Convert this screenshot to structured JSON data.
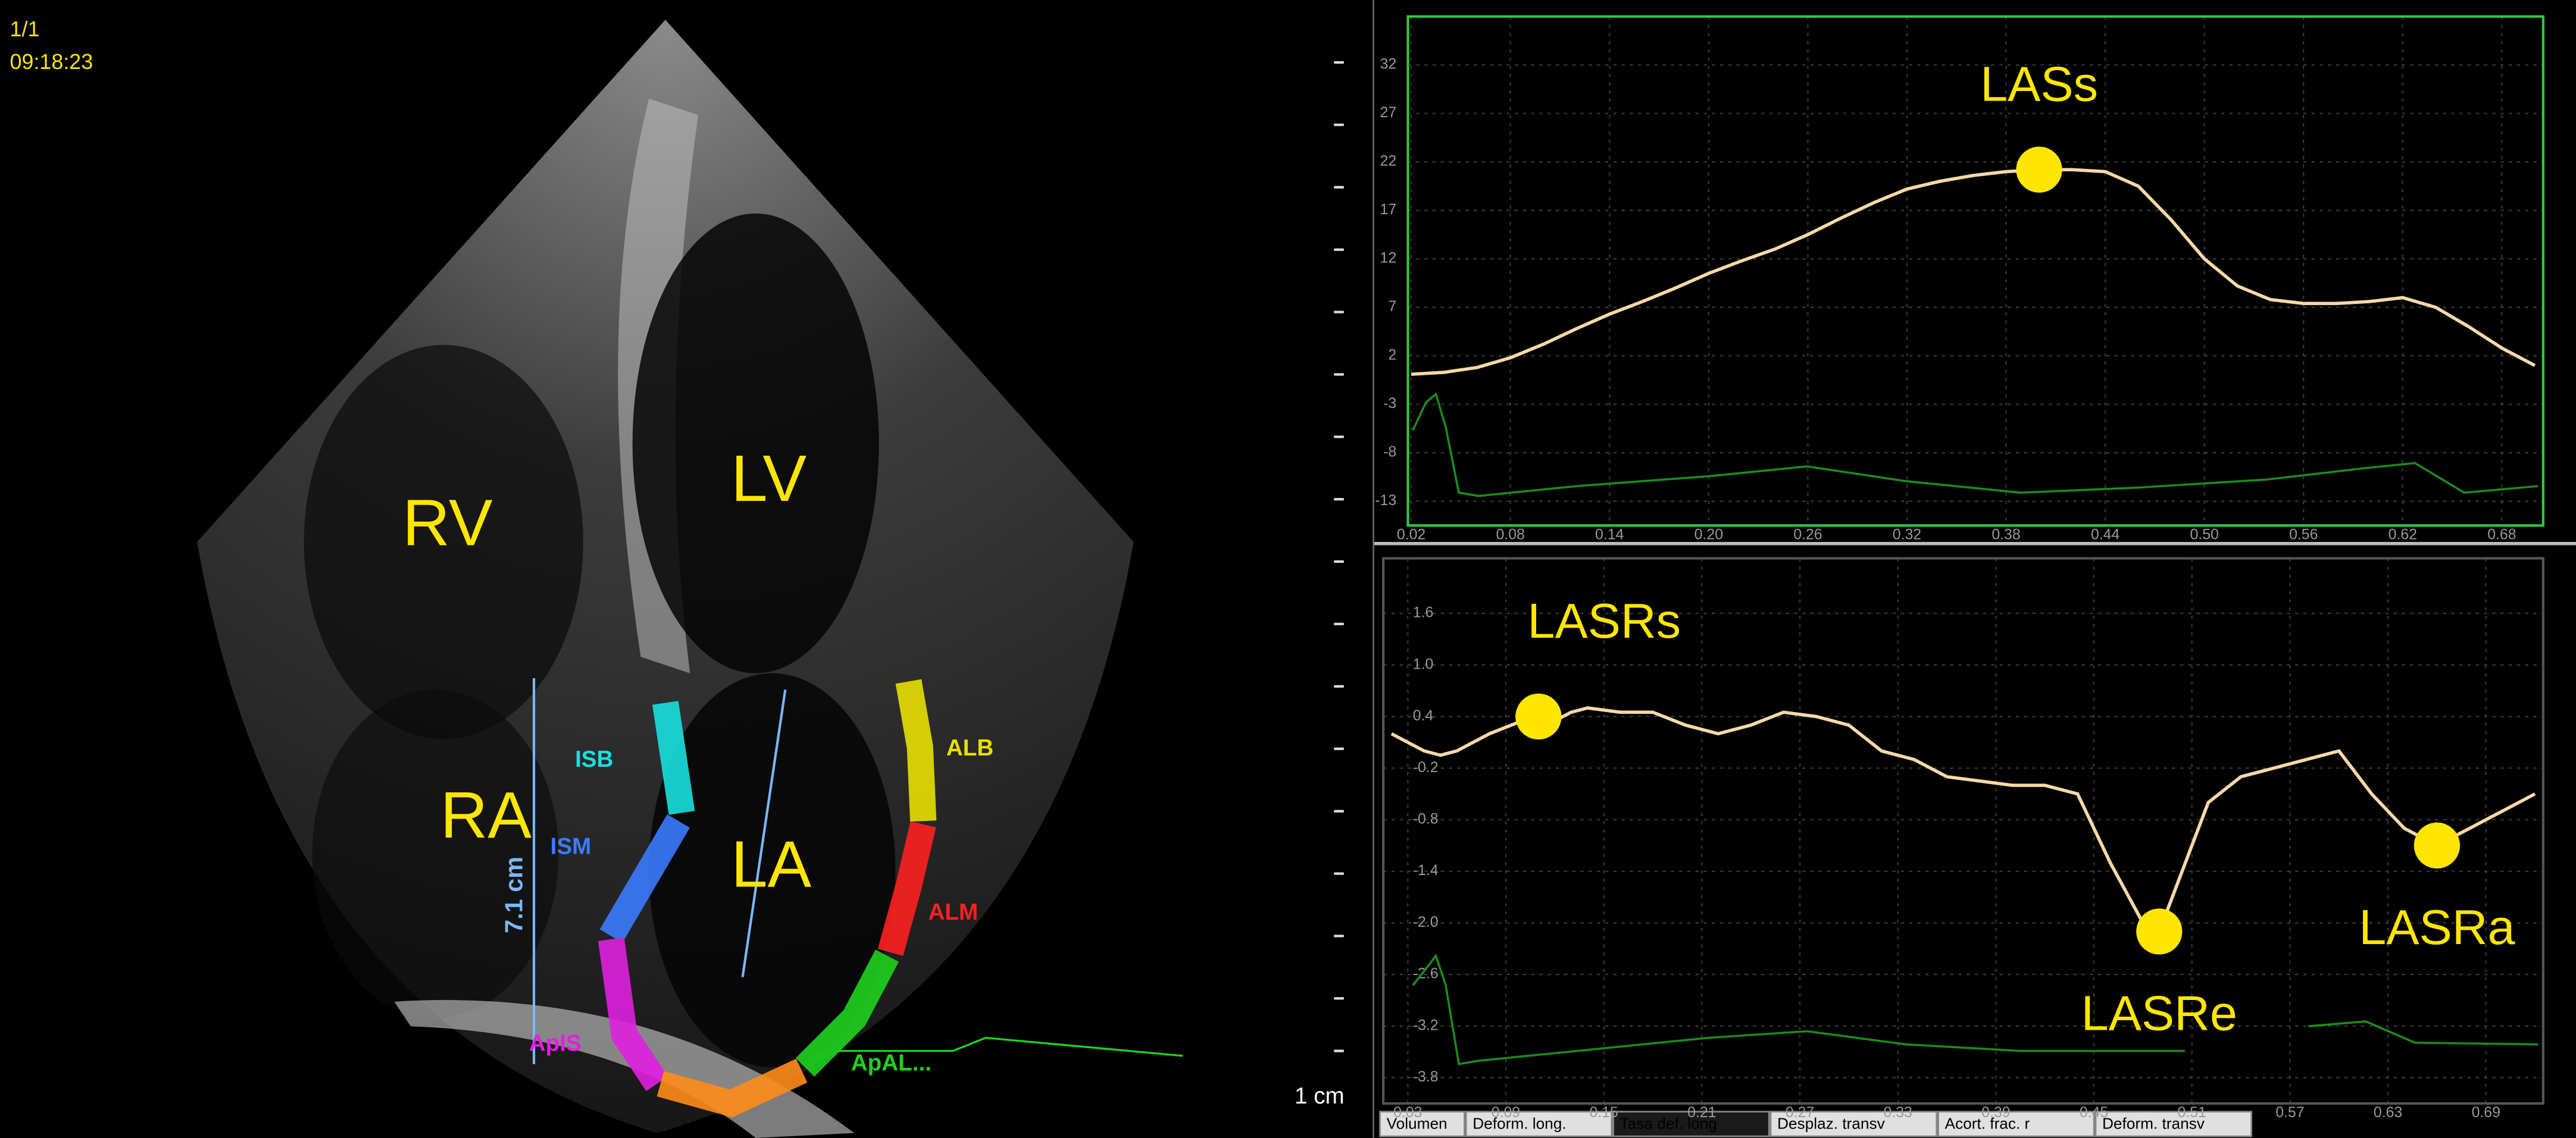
{
  "echo": {
    "frame": "1/1",
    "time": "09:18:23",
    "chambers": [
      "RV",
      "LV",
      "RA",
      "LA"
    ],
    "segments": [
      "ISB",
      "ISM",
      "ApIS",
      "ALB",
      "ALM",
      "ApAL..."
    ],
    "measurement": "7.1 cm",
    "scale": "1 cm"
  },
  "tabs": [
    "Volumen",
    "Deform. long.",
    "Tasa def. long",
    "Desplaz. transv",
    "Acort. frac. r",
    "Deform. transv"
  ],
  "chart_data": [
    {
      "type": "line",
      "color": "#f7d9a8",
      "grid": true,
      "annotation_color": "#ffe600",
      "xlim": [
        0.018,
        0.705
      ],
      "ylim": [
        -15.5,
        37
      ],
      "xticks": [
        0.02,
        0.08,
        0.14,
        {
          "value": 0.2,
          "label": "0.20"
        },
        0.26,
        0.32,
        0.38,
        0.44,
        {
          "value": 0.5,
          "label": "0.50"
        },
        0.56,
        0.62,
        0.68
      ],
      "yticks": [
        32,
        27,
        22,
        17,
        12,
        7,
        2,
        -3,
        -8,
        -13
      ],
      "x": [
        0.02,
        0.04,
        0.06,
        0.08,
        0.1,
        0.12,
        0.14,
        0.16,
        0.18,
        0.2,
        0.22,
        0.24,
        0.26,
        0.28,
        0.3,
        0.32,
        0.34,
        0.36,
        0.38,
        0.4,
        0.42,
        0.44,
        0.46,
        0.48,
        0.5,
        0.52,
        0.54,
        0.56,
        0.58,
        0.6,
        0.62,
        0.64,
        0.66,
        0.68,
        0.7
      ],
      "values": [
        0.1,
        0.3,
        0.8,
        1.8,
        3.2,
        4.8,
        6.3,
        7.6,
        9.0,
        10.5,
        11.8,
        13.0,
        14.5,
        16.2,
        17.8,
        19.2,
        20.0,
        20.6,
        21.0,
        21.2,
        21.2,
        21.0,
        19.5,
        16.0,
        12.0,
        9.2,
        7.8,
        7.4,
        7.4,
        7.6,
        8.0,
        7.0,
        5.0,
        2.8,
        1.0
      ],
      "annotations": [
        {
          "text": "LASs",
          "x": 0.4,
          "y": 21.2
        }
      ]
    },
    {
      "type": "line",
      "color": "#f7d9a8",
      "grid": true,
      "annotation_color": "#ffe600",
      "xlim": [
        0.015,
        0.725
      ],
      "ylim": [
        -4.1,
        2.24
      ],
      "xticks": [
        0.03,
        0.09,
        0.15,
        0.21,
        0.27,
        0.33,
        0.39,
        0.45,
        0.51,
        0.57,
        0.63,
        0.69
      ],
      "yticks": [
        1.6,
        {
          "value": 1,
          "label": "1.0"
        },
        0.4,
        -0.2,
        -0.8,
        -1.4,
        {
          "value": -2,
          "label": "-2.0"
        },
        -2.6,
        -3.2,
        -3.8
      ],
      "x": [
        0.02,
        0.04,
        0.05,
        0.06,
        0.08,
        0.1,
        0.11,
        0.12,
        0.13,
        0.14,
        0.16,
        0.18,
        0.2,
        0.22,
        0.24,
        0.26,
        0.28,
        0.3,
        0.32,
        0.34,
        0.36,
        0.38,
        0.4,
        0.42,
        0.44,
        0.46,
        0.48,
        0.49,
        0.5,
        0.52,
        0.54,
        0.56,
        0.58,
        0.6,
        0.62,
        0.64,
        0.66,
        0.68,
        0.7,
        0.72
      ],
      "values": [
        0.2,
        0.0,
        -0.05,
        0.0,
        0.2,
        0.35,
        0.4,
        0.35,
        0.45,
        0.5,
        0.45,
        0.45,
        0.3,
        0.2,
        0.3,
        0.45,
        0.4,
        0.3,
        0.0,
        -0.1,
        -0.3,
        -0.35,
        -0.4,
        -0.4,
        -0.5,
        -1.3,
        -2.0,
        -2.1,
        -1.6,
        -0.6,
        -0.3,
        -0.2,
        -0.1,
        0.0,
        -0.5,
        -0.9,
        -1.1,
        -0.9,
        -0.7,
        -0.5
      ],
      "annotations": [
        {
          "text": "LASRs",
          "x": 0.11,
          "y": 0.4
        },
        {
          "text": "LASRe",
          "x": 0.49,
          "y": -2.1
        },
        {
          "text": "LASRa",
          "x": 0.66,
          "y": -1.1
        }
      ]
    }
  ]
}
